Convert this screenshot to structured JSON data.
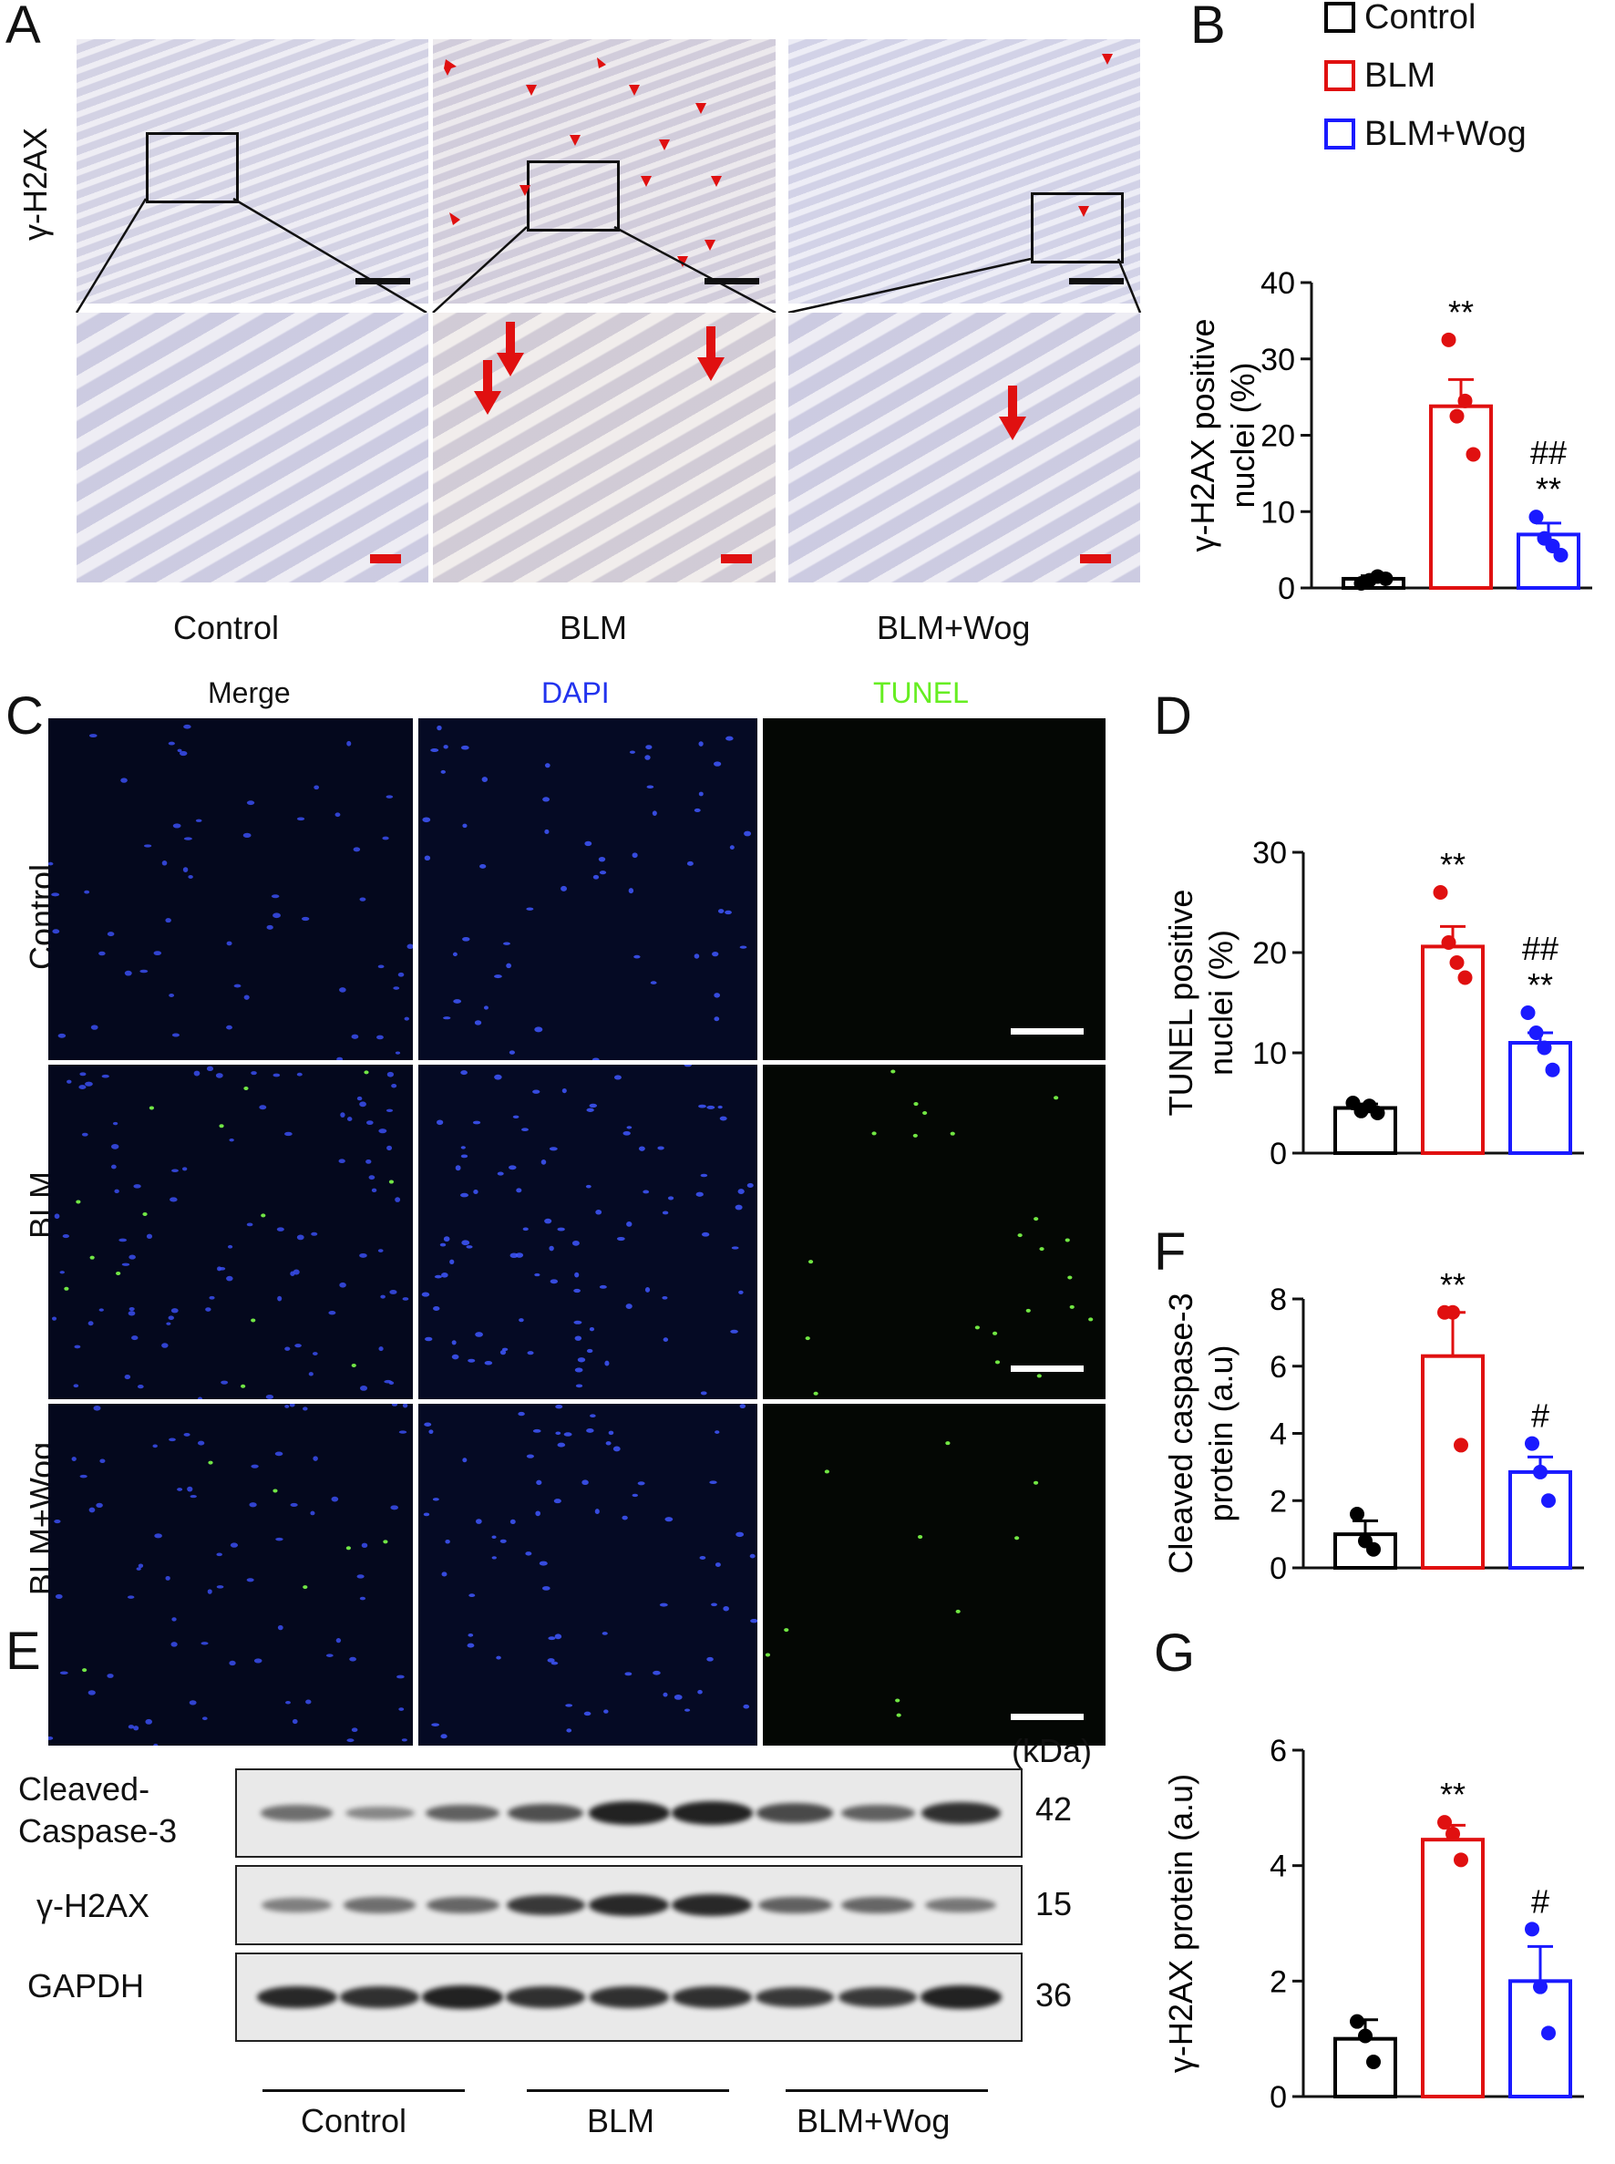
{
  "panel_letters": {
    "A": "A",
    "B": "B",
    "C": "C",
    "D": "D",
    "E": "E",
    "F": "F",
    "G": "G"
  },
  "panel_a": {
    "row_label": "γ-H2AX",
    "columns": [
      "Control",
      "BLM",
      "BLM+Wog"
    ]
  },
  "panel_c": {
    "columns": [
      "Merge",
      "DAPI",
      "TUNEL"
    ],
    "rows": [
      "Control",
      "BLM",
      "BLM+Wog"
    ],
    "colors": {
      "merge": "#111111",
      "dapi": "#2233ee",
      "tunel": "#66ee22"
    }
  },
  "legend": {
    "items": [
      {
        "label": "Control",
        "color": "#000000"
      },
      {
        "label": "BLM",
        "color": "#e01010"
      },
      {
        "label": "BLM+Wog",
        "color": "#1a1aff"
      }
    ]
  },
  "panel_e": {
    "kda_label": "(kDa)",
    "bands": [
      {
        "label_line1": "Cleaved-",
        "label_line2": "Caspase-3",
        "kda": "42"
      },
      {
        "label_line1": "γ-H2AX",
        "label_line2": "",
        "kda": "15"
      },
      {
        "label_line1": "GAPDH",
        "label_line2": "",
        "kda": "36"
      }
    ],
    "groups": [
      "Control",
      "BLM",
      "BLM+Wog"
    ],
    "band_intensity": [
      [
        0.45,
        0.3,
        0.55,
        0.65,
        0.95,
        0.95,
        0.7,
        0.55,
        0.85
      ],
      [
        0.35,
        0.45,
        0.5,
        0.8,
        0.9,
        0.9,
        0.55,
        0.5,
        0.4
      ],
      [
        0.9,
        0.85,
        0.95,
        0.85,
        0.85,
        0.85,
        0.8,
        0.8,
        0.95
      ]
    ]
  },
  "chart_data": [
    {
      "id": "B",
      "type": "bar",
      "ylabel_line1": "γ-H2AX positive",
      "ylabel_line2": "nuclei (%)",
      "ylim": [
        0,
        40
      ],
      "yticks": [
        0,
        10,
        20,
        30,
        40
      ],
      "categories": [
        "Control",
        "BLM",
        "BLM+Wog"
      ],
      "values": [
        1.2,
        23.8,
        7.0
      ],
      "sem": [
        0.4,
        3.5,
        1.5
      ],
      "points": [
        [
          0.6,
          1.0,
          1.5,
          1.2
        ],
        [
          32.5,
          22.5,
          24.5,
          17.5
        ],
        [
          9.3,
          6.5,
          5.5,
          4.3
        ]
      ],
      "annotations": [
        [],
        [
          "**"
        ],
        [
          "##",
          "**"
        ]
      ]
    },
    {
      "id": "D",
      "type": "bar",
      "ylabel_line1": "TUNEL positive",
      "ylabel_line2": "nuclei (%)",
      "ylim": [
        0,
        30
      ],
      "yticks": [
        0,
        10,
        20,
        30
      ],
      "categories": [
        "Control",
        "BLM",
        "BLM+Wog"
      ],
      "values": [
        4.5,
        20.6,
        11.0
      ],
      "sem": [
        0.4,
        2.0,
        1.0
      ],
      "points": [
        [
          5.0,
          4.2,
          4.7,
          4.0
        ],
        [
          26.0,
          21.0,
          19.0,
          17.5
        ],
        [
          14.0,
          12.0,
          10.5,
          8.3
        ]
      ],
      "annotations": [
        [],
        [
          "**"
        ],
        [
          "##",
          "**"
        ]
      ]
    },
    {
      "id": "F",
      "type": "bar",
      "ylabel_line1": "Cleaved caspase-3",
      "ylabel_line2": "protein (a.u)",
      "ylim": [
        0,
        8
      ],
      "yticks": [
        0,
        2,
        4,
        6,
        8
      ],
      "categories": [
        "Control",
        "BLM",
        "BLM+Wog"
      ],
      "values": [
        1.0,
        6.3,
        2.85
      ],
      "sem": [
        0.4,
        1.3,
        0.45
      ],
      "points": [
        [
          1.6,
          0.8,
          0.55
        ],
        [
          7.6,
          7.6,
          3.65
        ],
        [
          3.7,
          2.85,
          2.0
        ]
      ],
      "annotations": [
        [],
        [
          "**"
        ],
        [
          "#"
        ]
      ]
    },
    {
      "id": "G",
      "type": "bar",
      "ylabel_line1": "γ-H2AX protein (a.u)",
      "ylabel_line2": "",
      "ylim": [
        0,
        6
      ],
      "yticks": [
        0,
        2,
        4,
        6
      ],
      "categories": [
        "Control",
        "BLM",
        "BLM+Wog"
      ],
      "values": [
        1.0,
        4.45,
        2.0
      ],
      "sem": [
        0.33,
        0.25,
        0.6
      ],
      "points": [
        [
          1.3,
          1.05,
          0.6
        ],
        [
          4.75,
          4.55,
          4.1
        ],
        [
          2.9,
          1.9,
          1.1
        ]
      ],
      "annotations": [
        [],
        [
          "**"
        ],
        [
          "#"
        ]
      ]
    }
  ]
}
